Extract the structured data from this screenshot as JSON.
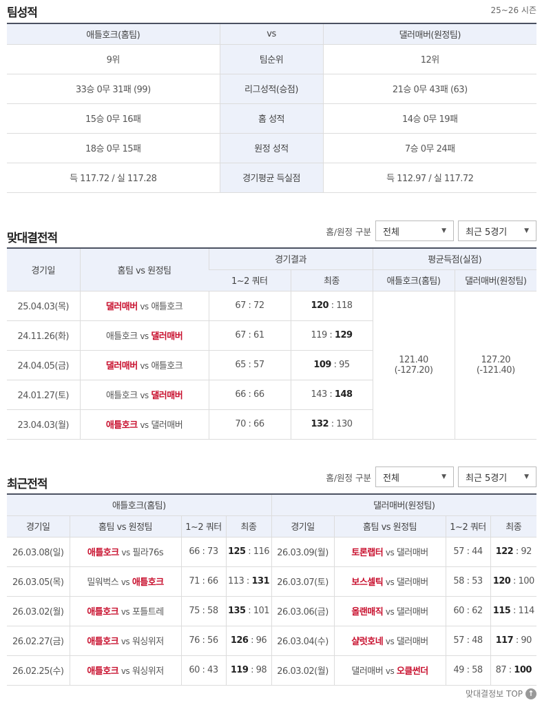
{
  "team_stats": {
    "title": "팀성적",
    "season": "25~26 시즌",
    "header": {
      "home": "애틀호크(홈팀)",
      "vs": "vs",
      "away": "댈러매버(원정팀)"
    },
    "rows": [
      {
        "home": "9위",
        "label": "팀순위",
        "away": "12위"
      },
      {
        "home": "33승 0무 31패 (99)",
        "label": "리그성적(승점)",
        "away": "21승 0무 43패 (63)"
      },
      {
        "home": "15승 0무 16패",
        "label": "홈 성적",
        "away": "14승 0무 19패"
      },
      {
        "home": "18승 0무 15패",
        "label": "원정 성적",
        "away": "7승 0무 24패"
      },
      {
        "home": "득 117.72 / 실 117.28",
        "label": "경기평균 득실점",
        "away": "득 112.97 / 실 117.72"
      }
    ]
  },
  "h2h": {
    "title": "맞대결전적",
    "filter_label": "홈/원정 구분",
    "filter_side": "전체",
    "filter_count": "최근 5경기",
    "headers": {
      "date": "경기일",
      "teams": "홈팀 vs 원정팀",
      "result": "경기결과",
      "q12": "1~2 쿼터",
      "final": "최종",
      "avg": "평균득점(실점)",
      "avg_home": "애틀호크(홈팀)",
      "avg_away": "댈러매버(원정팀)"
    },
    "vs": "vs",
    "avg_home": "121.40",
    "avg_home_against": "(-127.20)",
    "avg_away": "127.20",
    "avg_away_against": "(-121.40)",
    "rows": [
      {
        "date": "25.04.03(목)",
        "home": "댈러매버",
        "away": "애틀호크",
        "winner": "home",
        "q12": "67 : 72",
        "hs": "120",
        "as": "118"
      },
      {
        "date": "24.11.26(화)",
        "home": "애틀호크",
        "away": "댈러매버",
        "winner": "away",
        "q12": "67 : 61",
        "hs": "119",
        "as": "129"
      },
      {
        "date": "24.04.05(금)",
        "home": "댈러매버",
        "away": "애틀호크",
        "winner": "home",
        "q12": "65 : 57",
        "hs": "109",
        "as": "95"
      },
      {
        "date": "24.01.27(토)",
        "home": "애틀호크",
        "away": "댈러매버",
        "winner": "away",
        "q12": "66 : 66",
        "hs": "143",
        "as": "148"
      },
      {
        "date": "23.04.03(월)",
        "home": "애틀호크",
        "away": "댈러매버",
        "winner": "home",
        "q12": "70 : 66",
        "hs": "132",
        "as": "130"
      }
    ]
  },
  "recent": {
    "title": "최근전적",
    "filter_label": "홈/원정 구분",
    "filter_side": "전체",
    "filter_count": "최근 5경기",
    "headers": {
      "home_team": "애틀호크(홈팀)",
      "away_team": "댈러매버(원정팀)",
      "date": "경기일",
      "teams": "홈팀 vs 원정팀",
      "q12": "1~2 쿼터",
      "final": "최종"
    },
    "vs": "vs",
    "home_rows": [
      {
        "date": "26.03.08(일)",
        "home": "애틀호크",
        "away": "필라76s",
        "winner": "home",
        "q12": "66 : 73",
        "hs": "125",
        "as": "116"
      },
      {
        "date": "26.03.05(목)",
        "home": "밀워벅스",
        "away": "애틀호크",
        "winner": "away",
        "q12": "71 : 66",
        "hs": "113",
        "as": "131"
      },
      {
        "date": "26.03.02(월)",
        "home": "애틀호크",
        "away": "포틀트레",
        "winner": "home",
        "q12": "75 : 58",
        "hs": "135",
        "as": "101"
      },
      {
        "date": "26.02.27(금)",
        "home": "애틀호크",
        "away": "워싱위저",
        "winner": "home",
        "q12": "76 : 56",
        "hs": "126",
        "as": "96"
      },
      {
        "date": "26.02.25(수)",
        "home": "애틀호크",
        "away": "워싱위저",
        "winner": "home",
        "q12": "60 : 43",
        "hs": "119",
        "as": "98"
      }
    ],
    "away_rows": [
      {
        "date": "26.03.09(월)",
        "home": "토론랩터",
        "away": "댈러매버",
        "winner": "home",
        "q12": "57 : 44",
        "hs": "122",
        "as": "92"
      },
      {
        "date": "26.03.07(토)",
        "home": "보스셀틱",
        "away": "댈러매버",
        "winner": "home",
        "q12": "58 : 53",
        "hs": "120",
        "as": "100"
      },
      {
        "date": "26.03.06(금)",
        "home": "올랜매직",
        "away": "댈러매버",
        "winner": "home",
        "q12": "60 : 62",
        "hs": "115",
        "as": "114"
      },
      {
        "date": "26.03.04(수)",
        "home": "샬럿호네",
        "away": "댈러매버",
        "winner": "home",
        "q12": "57 : 48",
        "hs": "117",
        "as": "90"
      },
      {
        "date": "26.03.02(월)",
        "home": "댈러매버",
        "away": "오클썬더",
        "winner": "away",
        "q12": "49 : 58",
        "hs": "87",
        "as": "100"
      }
    ]
  },
  "footer": {
    "top_label": "맞대결정보 TOP",
    "top_icon": "arrow-up-icon"
  },
  "colors": {
    "winner": "#c8102e",
    "header_bg": "#edf1fa"
  }
}
